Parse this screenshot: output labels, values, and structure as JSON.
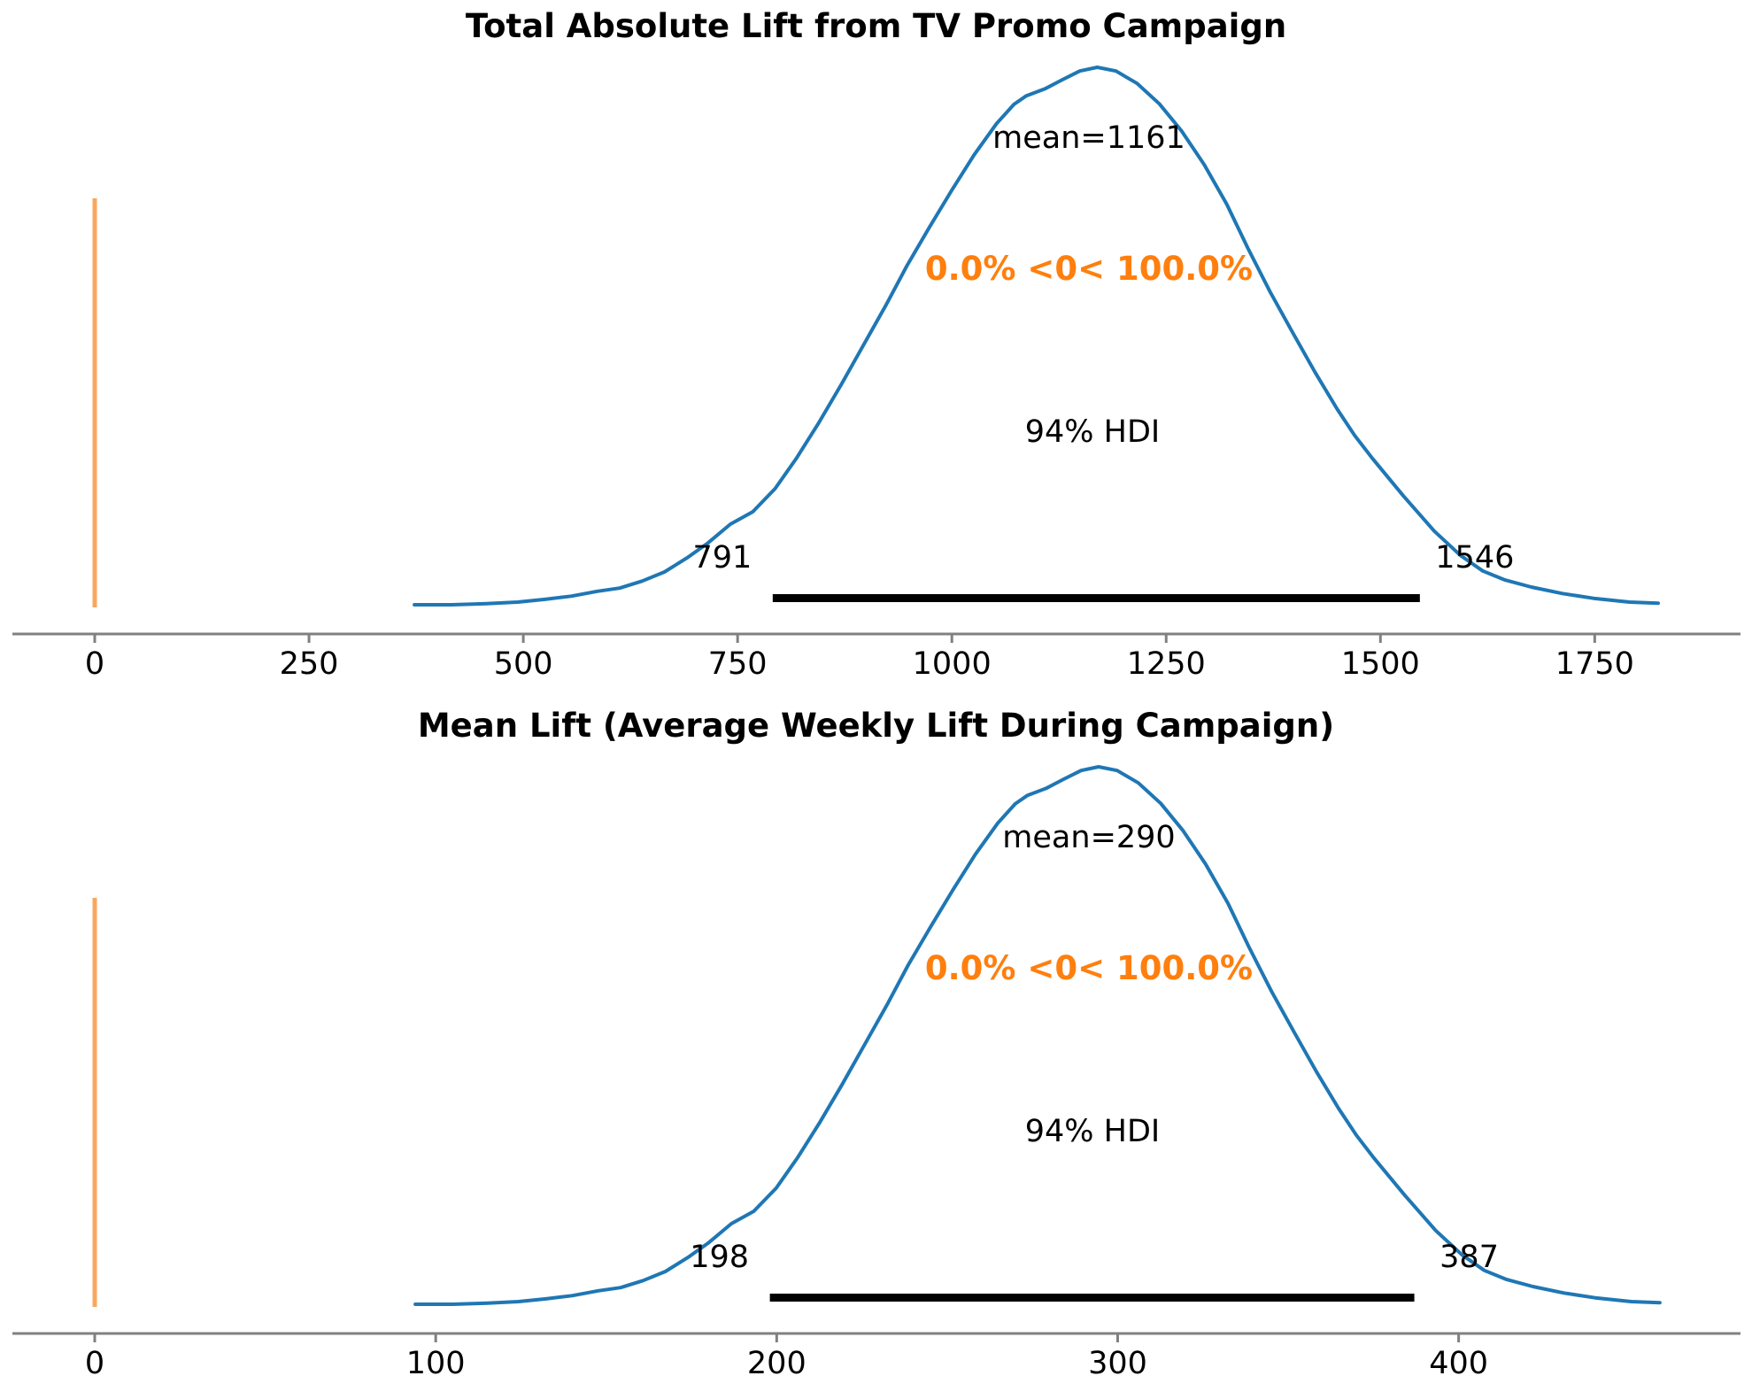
{
  "page": {
    "background": "#ffffff"
  },
  "colors": {
    "kde_curve": "#1f77b4",
    "ref_line": "#f8a75e",
    "ref_text": "#ff7f0e",
    "hdi_bar": "#000000",
    "axis_line": "#808080",
    "tick_mark": "#808080",
    "text": "#000000"
  },
  "chart_data": {
    "type": "kde",
    "figure_kind": "posterior-density-pair",
    "grid": false,
    "legend": false,
    "shared_curve_normalized": [
      [
        0.0,
        0.0
      ],
      [
        0.03,
        0.0
      ],
      [
        0.058,
        0.002
      ],
      [
        0.083,
        0.005
      ],
      [
        0.105,
        0.01
      ],
      [
        0.126,
        0.016
      ],
      [
        0.147,
        0.025
      ],
      [
        0.165,
        0.031
      ],
      [
        0.183,
        0.044
      ],
      [
        0.201,
        0.061
      ],
      [
        0.219,
        0.087
      ],
      [
        0.236,
        0.115
      ],
      [
        0.254,
        0.15
      ],
      [
        0.272,
        0.173
      ],
      [
        0.29,
        0.216
      ],
      [
        0.307,
        0.272
      ],
      [
        0.325,
        0.338
      ],
      [
        0.343,
        0.409
      ],
      [
        0.361,
        0.483
      ],
      [
        0.379,
        0.557
      ],
      [
        0.396,
        0.631
      ],
      [
        0.414,
        0.702
      ],
      [
        0.432,
        0.771
      ],
      [
        0.45,
        0.837
      ],
      [
        0.468,
        0.895
      ],
      [
        0.482,
        0.931
      ],
      [
        0.492,
        0.947
      ],
      [
        0.507,
        0.96
      ],
      [
        0.521,
        0.977
      ],
      [
        0.535,
        0.993
      ],
      [
        0.549,
        1.0
      ],
      [
        0.564,
        0.993
      ],
      [
        0.581,
        0.97
      ],
      [
        0.599,
        0.932
      ],
      [
        0.617,
        0.881
      ],
      [
        0.635,
        0.819
      ],
      [
        0.653,
        0.746
      ],
      [
        0.67,
        0.664
      ],
      [
        0.688,
        0.582
      ],
      [
        0.706,
        0.507
      ],
      [
        0.724,
        0.433
      ],
      [
        0.742,
        0.364
      ],
      [
        0.756,
        0.315
      ],
      [
        0.77,
        0.273
      ],
      [
        0.795,
        0.203
      ],
      [
        0.82,
        0.137
      ],
      [
        0.841,
        0.092
      ],
      [
        0.859,
        0.063
      ],
      [
        0.877,
        0.046
      ],
      [
        0.898,
        0.033
      ],
      [
        0.923,
        0.021
      ],
      [
        0.948,
        0.012
      ],
      [
        0.977,
        0.005
      ],
      [
        1.0,
        0.003
      ]
    ],
    "plots": [
      {
        "title": "Total Absolute Lift from TV Promo Campaign",
        "mean": 1161,
        "mean_label": "mean=1161",
        "ref_val": 0,
        "ref_label": "0.0% <0< 100.0%",
        "hdi_text": "94% HDI",
        "hdi": [
          791,
          1546
        ],
        "hdi_lo_label": "791",
        "hdi_hi_label": "1546",
        "x_ticks": [
          0,
          250,
          500,
          750,
          1000,
          1250,
          1500,
          1750
        ],
        "support": [
          373,
          1824
        ]
      },
      {
        "title": "Mean Lift (Average Weekly Lift During Campaign)",
        "mean": 290,
        "mean_label": "mean=290",
        "ref_val": 0,
        "ref_label": "0.0% <0< 100.0%",
        "hdi_text": "94% HDI",
        "hdi": [
          198,
          387
        ],
        "hdi_lo_label": "198",
        "hdi_hi_label": "387",
        "x_ticks": [
          0,
          100,
          200,
          300,
          400
        ],
        "support": [
          94,
          459
        ]
      }
    ]
  }
}
